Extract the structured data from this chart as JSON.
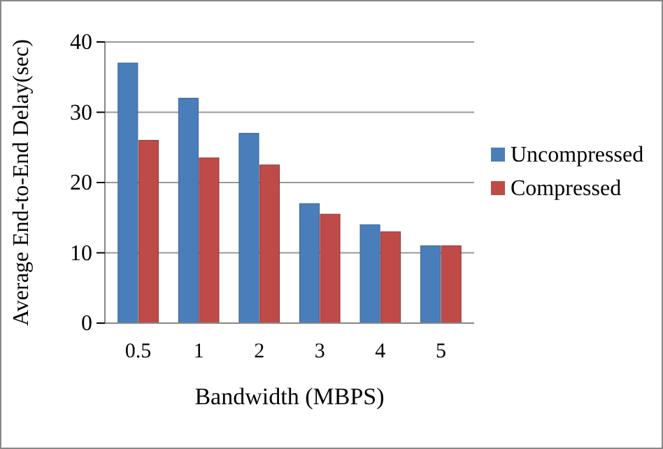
{
  "chart_data": {
    "type": "bar",
    "xlabel": "Bandwidth (MBPS)",
    "ylabel": "Average End-to-End Delay(sec)",
    "categories": [
      "0.5",
      "1",
      "2",
      "3",
      "4",
      "5"
    ],
    "series": [
      {
        "name": "Uncompressed",
        "color": "#4a7ebb",
        "values": [
          37,
          32,
          27,
          17,
          14,
          11
        ]
      },
      {
        "name": "Compressed",
        "color": "#be4b48",
        "values": [
          26,
          23.5,
          22.5,
          15.5,
          13,
          11
        ]
      }
    ],
    "ylim": [
      0,
      40
    ],
    "yticks": [
      0,
      10,
      20,
      30,
      40
    ],
    "grid": "y",
    "legend": "right"
  }
}
